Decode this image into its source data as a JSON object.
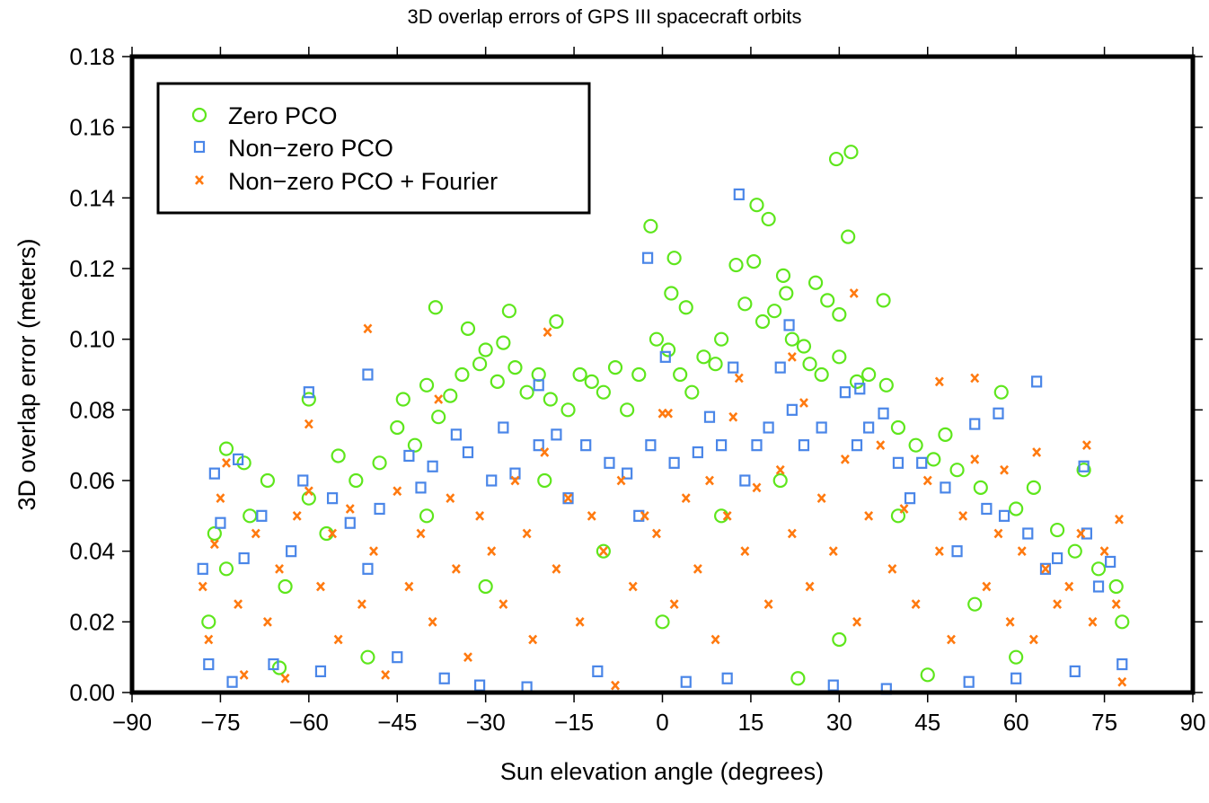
{
  "chart_data": {
    "type": "scatter",
    "title": "3D overlap errors of GPS III spacecraft orbits",
    "xlabel": "Sun elevation angle (degrees)",
    "ylabel": "3D overlap error (meters)",
    "xlim": [
      -90,
      90
    ],
    "ylim": [
      0,
      0.18
    ],
    "xticks": [
      "−90",
      "−75",
      "−60",
      "−45",
      "−30",
      "−15",
      "0",
      "15",
      "30",
      "45",
      "60",
      "75",
      "90"
    ],
    "xtick_values": [
      -90,
      -75,
      -60,
      -45,
      -30,
      -15,
      0,
      15,
      30,
      45,
      60,
      75,
      90
    ],
    "yticks": [
      "0.00",
      "0.02",
      "0.04",
      "0.06",
      "0.08",
      "0.10",
      "0.12",
      "0.14",
      "0.16",
      "0.18"
    ],
    "ytick_values": [
      0,
      0.02,
      0.04,
      0.06,
      0.08,
      0.1,
      0.12,
      0.14,
      0.16,
      0.18
    ],
    "grid": false,
    "legend_position": "top-left",
    "series": [
      {
        "name": "Zero PCO",
        "marker": "circle",
        "color": "#5ee61c",
        "points": [
          [
            -60,
            0.083
          ],
          [
            -38.5,
            0.109
          ],
          [
            -26,
            0.108
          ],
          [
            -18,
            0.105
          ],
          [
            -2,
            0.132
          ],
          [
            2,
            0.123
          ],
          [
            1.5,
            0.113
          ],
          [
            4,
            0.109
          ],
          [
            12.5,
            0.121
          ],
          [
            16,
            0.138
          ],
          [
            15.5,
            0.122
          ],
          [
            18,
            0.134
          ],
          [
            20.5,
            0.118
          ],
          [
            21,
            0.113
          ],
          [
            26,
            0.116
          ],
          [
            29.5,
            0.151
          ],
          [
            32,
            0.153
          ],
          [
            31.5,
            0.129
          ],
          [
            28,
            0.111
          ],
          [
            30,
            0.107
          ],
          [
            37.5,
            0.111
          ],
          [
            57.5,
            0.085
          ],
          [
            48,
            0.073
          ],
          [
            71.5,
            0.063
          ],
          [
            -74,
            0.069
          ],
          [
            -71,
            0.065
          ],
          [
            -77,
            0.02
          ],
          [
            -76,
            0.045
          ],
          [
            -74,
            0.035
          ],
          [
            -70,
            0.05
          ],
          [
            -67,
            0.06
          ],
          [
            -64,
            0.03
          ],
          [
            -60,
            0.055
          ],
          [
            -57,
            0.045
          ],
          [
            -55,
            0.067
          ],
          [
            -52,
            0.06
          ],
          [
            -48,
            0.065
          ],
          [
            -45,
            0.075
          ],
          [
            -44,
            0.083
          ],
          [
            -42,
            0.07
          ],
          [
            -40,
            0.087
          ],
          [
            -38,
            0.078
          ],
          [
            -36,
            0.084
          ],
          [
            -34,
            0.09
          ],
          [
            -33,
            0.103
          ],
          [
            -31,
            0.093
          ],
          [
            -30,
            0.097
          ],
          [
            -28,
            0.088
          ],
          [
            -27,
            0.099
          ],
          [
            -25,
            0.092
          ],
          [
            -23,
            0.085
          ],
          [
            -21,
            0.09
          ],
          [
            -19,
            0.083
          ],
          [
            -16,
            0.08
          ],
          [
            -14,
            0.09
          ],
          [
            -12,
            0.088
          ],
          [
            -10,
            0.085
          ],
          [
            -8,
            0.092
          ],
          [
            -6,
            0.08
          ],
          [
            -4,
            0.09
          ],
          [
            -1,
            0.1
          ],
          [
            1,
            0.097
          ],
          [
            3,
            0.09
          ],
          [
            5,
            0.085
          ],
          [
            7,
            0.095
          ],
          [
            9,
            0.093
          ],
          [
            10,
            0.1
          ],
          [
            14,
            0.11
          ],
          [
            17,
            0.105
          ],
          [
            19,
            0.108
          ],
          [
            22,
            0.1
          ],
          [
            24,
            0.098
          ],
          [
            25,
            0.093
          ],
          [
            27,
            0.09
          ],
          [
            30,
            0.095
          ],
          [
            33,
            0.088
          ],
          [
            35,
            0.09
          ],
          [
            38,
            0.087
          ],
          [
            40,
            0.075
          ],
          [
            43,
            0.07
          ],
          [
            46,
            0.066
          ],
          [
            50,
            0.063
          ],
          [
            54,
            0.058
          ],
          [
            60,
            0.052
          ],
          [
            63,
            0.058
          ],
          [
            67,
            0.046
          ],
          [
            70,
            0.04
          ],
          [
            74,
            0.035
          ],
          [
            77,
            0.03
          ],
          [
            78,
            0.02
          ],
          [
            -30,
            0.03
          ],
          [
            0,
            0.02
          ],
          [
            30,
            0.015
          ],
          [
            -50,
            0.01
          ],
          [
            45,
            0.005
          ],
          [
            60,
            0.01
          ],
          [
            -10,
            0.04
          ],
          [
            10,
            0.05
          ],
          [
            20,
            0.06
          ],
          [
            -20,
            0.06
          ],
          [
            -40,
            0.05
          ],
          [
            40,
            0.05
          ],
          [
            -65,
            0.007
          ],
          [
            23,
            0.004
          ],
          [
            53,
            0.025
          ]
        ]
      },
      {
        "name": "Non−zero PCO",
        "marker": "square",
        "color": "#4a86e8",
        "points": [
          [
            13,
            0.141
          ],
          [
            -2.5,
            0.123
          ],
          [
            21.5,
            0.104
          ],
          [
            0.5,
            0.095
          ],
          [
            -50,
            0.09
          ],
          [
            -60,
            0.085
          ],
          [
            -21,
            0.087
          ],
          [
            63.5,
            0.088
          ],
          [
            57,
            0.079
          ],
          [
            53,
            0.076
          ],
          [
            33.5,
            0.086
          ],
          [
            12,
            0.092
          ],
          [
            20,
            0.092
          ],
          [
            37.5,
            0.079
          ],
          [
            71.5,
            0.064
          ],
          [
            -76,
            0.062
          ],
          [
            -72,
            0.066
          ],
          [
            -78,
            0.035
          ],
          [
            -77,
            0.008
          ],
          [
            -75,
            0.048
          ],
          [
            -73,
            0.003
          ],
          [
            -71,
            0.038
          ],
          [
            -68,
            0.05
          ],
          [
            -66,
            0.008
          ],
          [
            -63,
            0.04
          ],
          [
            -61,
            0.06
          ],
          [
            -58,
            0.006
          ],
          [
            -56,
            0.055
          ],
          [
            -53,
            0.048
          ],
          [
            -50,
            0.035
          ],
          [
            -48,
            0.052
          ],
          [
            -45,
            0.01
          ],
          [
            -43,
            0.067
          ],
          [
            -41,
            0.058
          ],
          [
            -39,
            0.064
          ],
          [
            -37,
            0.004
          ],
          [
            -35,
            0.073
          ],
          [
            -33,
            0.068
          ],
          [
            -31,
            0.002
          ],
          [
            -29,
            0.06
          ],
          [
            -27,
            0.075
          ],
          [
            -25,
            0.062
          ],
          [
            -23,
            0.0015
          ],
          [
            -21,
            0.07
          ],
          [
            -18,
            0.073
          ],
          [
            -16,
            0.055
          ],
          [
            -13,
            0.07
          ],
          [
            -11,
            0.006
          ],
          [
            -9,
            0.065
          ],
          [
            -6,
            0.062
          ],
          [
            -4,
            0.05
          ],
          [
            -2,
            0.07
          ],
          [
            2,
            0.065
          ],
          [
            4,
            0.003
          ],
          [
            6,
            0.068
          ],
          [
            8,
            0.078
          ],
          [
            10,
            0.07
          ],
          [
            11,
            0.004
          ],
          [
            14,
            0.06
          ],
          [
            16,
            0.07
          ],
          [
            18,
            0.075
          ],
          [
            22,
            0.08
          ],
          [
            24,
            0.07
          ],
          [
            27,
            0.075
          ],
          [
            29,
            0.002
          ],
          [
            31,
            0.085
          ],
          [
            33,
            0.07
          ],
          [
            35,
            0.075
          ],
          [
            38,
            0.001
          ],
          [
            40,
            0.065
          ],
          [
            42,
            0.055
          ],
          [
            44,
            0.065
          ],
          [
            48,
            0.058
          ],
          [
            50,
            0.04
          ],
          [
            52,
            0.003
          ],
          [
            55,
            0.052
          ],
          [
            58,
            0.05
          ],
          [
            60,
            0.004
          ],
          [
            62,
            0.045
          ],
          [
            65,
            0.035
          ],
          [
            67,
            0.038
          ],
          [
            70,
            0.006
          ],
          [
            72,
            0.045
          ],
          [
            74,
            0.03
          ],
          [
            76,
            0.037
          ],
          [
            78,
            0.008
          ]
        ]
      },
      {
        "name": "Non−zero PCO + Fourier",
        "marker": "x",
        "color": "#ff7a10",
        "points": [
          [
            -50,
            0.103
          ],
          [
            -19.5,
            0.102
          ],
          [
            32.5,
            0.113
          ],
          [
            22,
            0.095
          ],
          [
            13,
            0.089
          ],
          [
            47,
            0.088
          ],
          [
            53,
            0.089
          ],
          [
            -60,
            0.076
          ],
          [
            0,
            0.079
          ],
          [
            72,
            0.07
          ],
          [
            63.5,
            0.068
          ],
          [
            58,
            0.063
          ],
          [
            77.5,
            0.049
          ],
          [
            -78,
            0.03
          ],
          [
            -77,
            0.015
          ],
          [
            -76,
            0.042
          ],
          [
            -75,
            0.055
          ],
          [
            -74,
            0.065
          ],
          [
            -72,
            0.025
          ],
          [
            -71,
            0.005
          ],
          [
            -69,
            0.045
          ],
          [
            -67,
            0.02
          ],
          [
            -65,
            0.035
          ],
          [
            -64,
            0.004
          ],
          [
            -62,
            0.05
          ],
          [
            -60,
            0.057
          ],
          [
            -58,
            0.03
          ],
          [
            -56,
            0.045
          ],
          [
            -55,
            0.015
          ],
          [
            -53,
            0.052
          ],
          [
            -51,
            0.025
          ],
          [
            -49,
            0.04
          ],
          [
            -47,
            0.005
          ],
          [
            -45,
            0.057
          ],
          [
            -43,
            0.03
          ],
          [
            -41,
            0.045
          ],
          [
            -39,
            0.02
          ],
          [
            -38,
            0.083
          ],
          [
            -36,
            0.055
          ],
          [
            -35,
            0.035
          ],
          [
            -33,
            0.01
          ],
          [
            -31,
            0.05
          ],
          [
            -29,
            0.04
          ],
          [
            -27,
            0.025
          ],
          [
            -25,
            0.06
          ],
          [
            -23,
            0.045
          ],
          [
            -22,
            0.015
          ],
          [
            -20,
            0.068
          ],
          [
            -18,
            0.035
          ],
          [
            -16,
            0.055
          ],
          [
            -14,
            0.02
          ],
          [
            -12,
            0.05
          ],
          [
            -10,
            0.04
          ],
          [
            -8,
            0.002
          ],
          [
            -7,
            0.06
          ],
          [
            -5,
            0.03
          ],
          [
            -3,
            0.05
          ],
          [
            -1,
            0.045
          ],
          [
            1,
            0.079
          ],
          [
            2,
            0.025
          ],
          [
            4,
            0.055
          ],
          [
            6,
            0.035
          ],
          [
            8,
            0.06
          ],
          [
            9,
            0.015
          ],
          [
            11,
            0.05
          ],
          [
            12,
            0.078
          ],
          [
            14,
            0.04
          ],
          [
            16,
            0.058
          ],
          [
            18,
            0.025
          ],
          [
            20,
            0.063
          ],
          [
            22,
            0.045
          ],
          [
            24,
            0.082
          ],
          [
            25,
            0.03
          ],
          [
            27,
            0.055
          ],
          [
            29,
            0.04
          ],
          [
            31,
            0.066
          ],
          [
            33,
            0.02
          ],
          [
            35,
            0.05
          ],
          [
            37,
            0.07
          ],
          [
            39,
            0.035
          ],
          [
            41,
            0.052
          ],
          [
            43,
            0.025
          ],
          [
            45,
            0.06
          ],
          [
            47,
            0.04
          ],
          [
            49,
            0.015
          ],
          [
            51,
            0.05
          ],
          [
            53,
            0.066
          ],
          [
            55,
            0.03
          ],
          [
            57,
            0.045
          ],
          [
            59,
            0.02
          ],
          [
            61,
            0.04
          ],
          [
            63,
            0.015
          ],
          [
            65,
            0.035
          ],
          [
            67,
            0.025
          ],
          [
            69,
            0.03
          ],
          [
            71,
            0.045
          ],
          [
            73,
            0.02
          ],
          [
            75,
            0.04
          ],
          [
            77,
            0.025
          ],
          [
            78,
            0.003
          ]
        ]
      }
    ]
  }
}
